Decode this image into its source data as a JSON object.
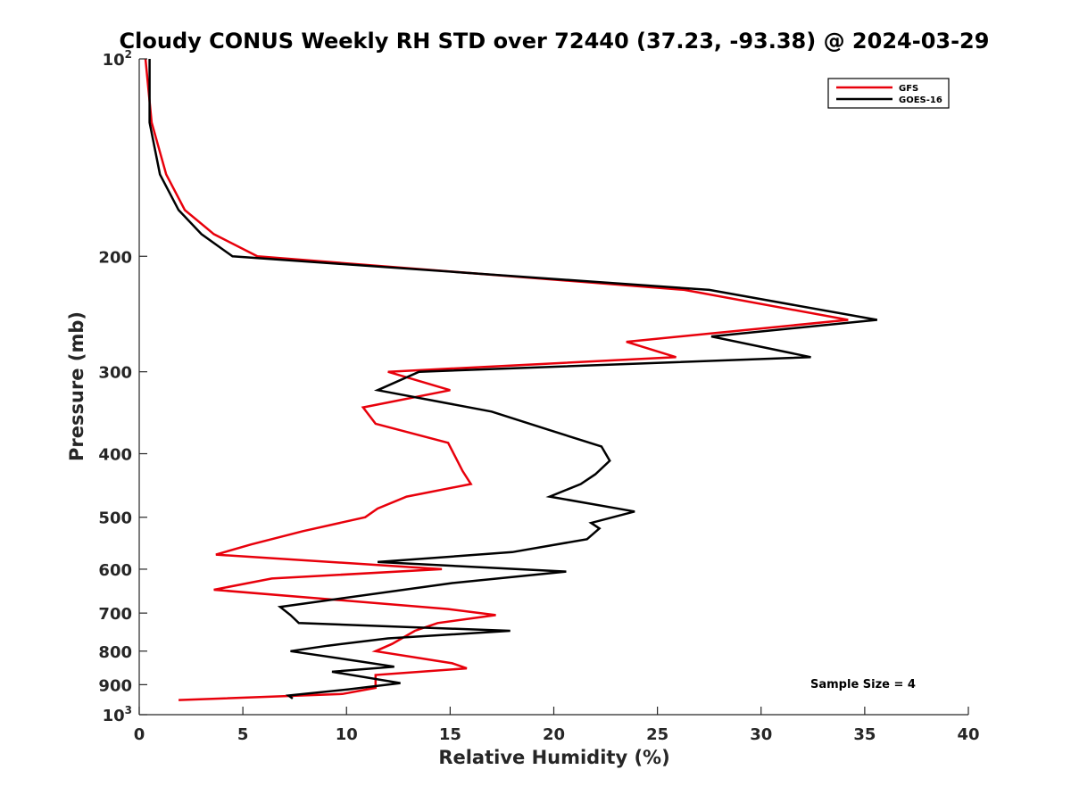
{
  "chart_data": {
    "type": "line",
    "title": "Cloudy CONUS Weekly RH STD over 72440 (37.23, -93.38) @ 2024-03-29",
    "xlabel": "Relative Humidity (%)",
    "ylabel": "Pressure (mb)",
    "xlim": [
      0,
      40
    ],
    "ylim": [
      100,
      1000
    ],
    "y_scale": "log",
    "y_reversed": true,
    "grid": false,
    "legend_position": "top-right",
    "annotation": "Sample Size = 4",
    "x_ticks": [
      "0",
      "5",
      "10",
      "15",
      "20",
      "25",
      "30",
      "35",
      "40"
    ],
    "y_ticks": [
      {
        "value": 100,
        "base": "10",
        "exp": "2"
      },
      {
        "value": 200,
        "label": "200"
      },
      {
        "value": 300,
        "label": "300"
      },
      {
        "value": 400,
        "label": "400"
      },
      {
        "value": 500,
        "label": "500"
      },
      {
        "value": 600,
        "label": "600"
      },
      {
        "value": 700,
        "label": "700"
      },
      {
        "value": 800,
        "label": "800"
      },
      {
        "value": 900,
        "label": "900"
      },
      {
        "value": 1000,
        "base": "10",
        "exp": "3"
      }
    ],
    "series": [
      {
        "name": "GFS",
        "color": "#e8000b",
        "points": [
          [
            0.3,
            100
          ],
          [
            0.6,
            125
          ],
          [
            1.3,
            150
          ],
          [
            2.2,
            170
          ],
          [
            3.6,
            185
          ],
          [
            5.7,
            200
          ],
          [
            26.3,
            225
          ],
          [
            34.2,
            250
          ],
          [
            23.5,
            270
          ],
          [
            25.9,
            285
          ],
          [
            12.0,
            300
          ],
          [
            15.0,
            320
          ],
          [
            10.8,
            340
          ],
          [
            11.4,
            360
          ],
          [
            14.9,
            385
          ],
          [
            15.6,
            425
          ],
          [
            16.0,
            445
          ],
          [
            12.9,
            465
          ],
          [
            11.5,
            485
          ],
          [
            10.9,
            500
          ],
          [
            7.9,
            525
          ],
          [
            5.4,
            550
          ],
          [
            3.7,
            570
          ],
          [
            14.6,
            600
          ],
          [
            6.4,
            620
          ],
          [
            3.6,
            645
          ],
          [
            14.9,
            690
          ],
          [
            17.2,
            705
          ],
          [
            14.4,
            725
          ],
          [
            13.3,
            745
          ],
          [
            12.2,
            780
          ],
          [
            11.4,
            800
          ],
          [
            15.1,
            835
          ],
          [
            15.8,
            850
          ],
          [
            11.4,
            870
          ],
          [
            11.4,
            910
          ],
          [
            9.8,
            930
          ],
          [
            1.9,
            950
          ]
        ]
      },
      {
        "name": "GOES-16",
        "color": "#000000",
        "points": [
          [
            0.5,
            100
          ],
          [
            0.5,
            125
          ],
          [
            1.0,
            150
          ],
          [
            1.9,
            170
          ],
          [
            3.0,
            185
          ],
          [
            4.5,
            200
          ],
          [
            27.5,
            225
          ],
          [
            35.6,
            250
          ],
          [
            27.6,
            265
          ],
          [
            32.4,
            285
          ],
          [
            13.5,
            300
          ],
          [
            11.5,
            320
          ],
          [
            17.0,
            345
          ],
          [
            20.0,
            370
          ],
          [
            22.3,
            390
          ],
          [
            22.7,
            410
          ],
          [
            22.0,
            430
          ],
          [
            21.3,
            445
          ],
          [
            19.8,
            465
          ],
          [
            23.9,
            490
          ],
          [
            21.8,
            510
          ],
          [
            22.2,
            520
          ],
          [
            21.6,
            540
          ],
          [
            18.0,
            565
          ],
          [
            11.5,
            585
          ],
          [
            20.6,
            605
          ],
          [
            15.1,
            630
          ],
          [
            6.8,
            685
          ],
          [
            7.3,
            705
          ],
          [
            7.7,
            725
          ],
          [
            17.9,
            745
          ],
          [
            12.0,
            765
          ],
          [
            9.1,
            785
          ],
          [
            7.3,
            800
          ],
          [
            10.7,
            830
          ],
          [
            12.3,
            845
          ],
          [
            9.3,
            860
          ],
          [
            12.6,
            895
          ],
          [
            10.1,
            915
          ],
          [
            7.2,
            935
          ],
          [
            7.4,
            945
          ]
        ]
      }
    ]
  }
}
